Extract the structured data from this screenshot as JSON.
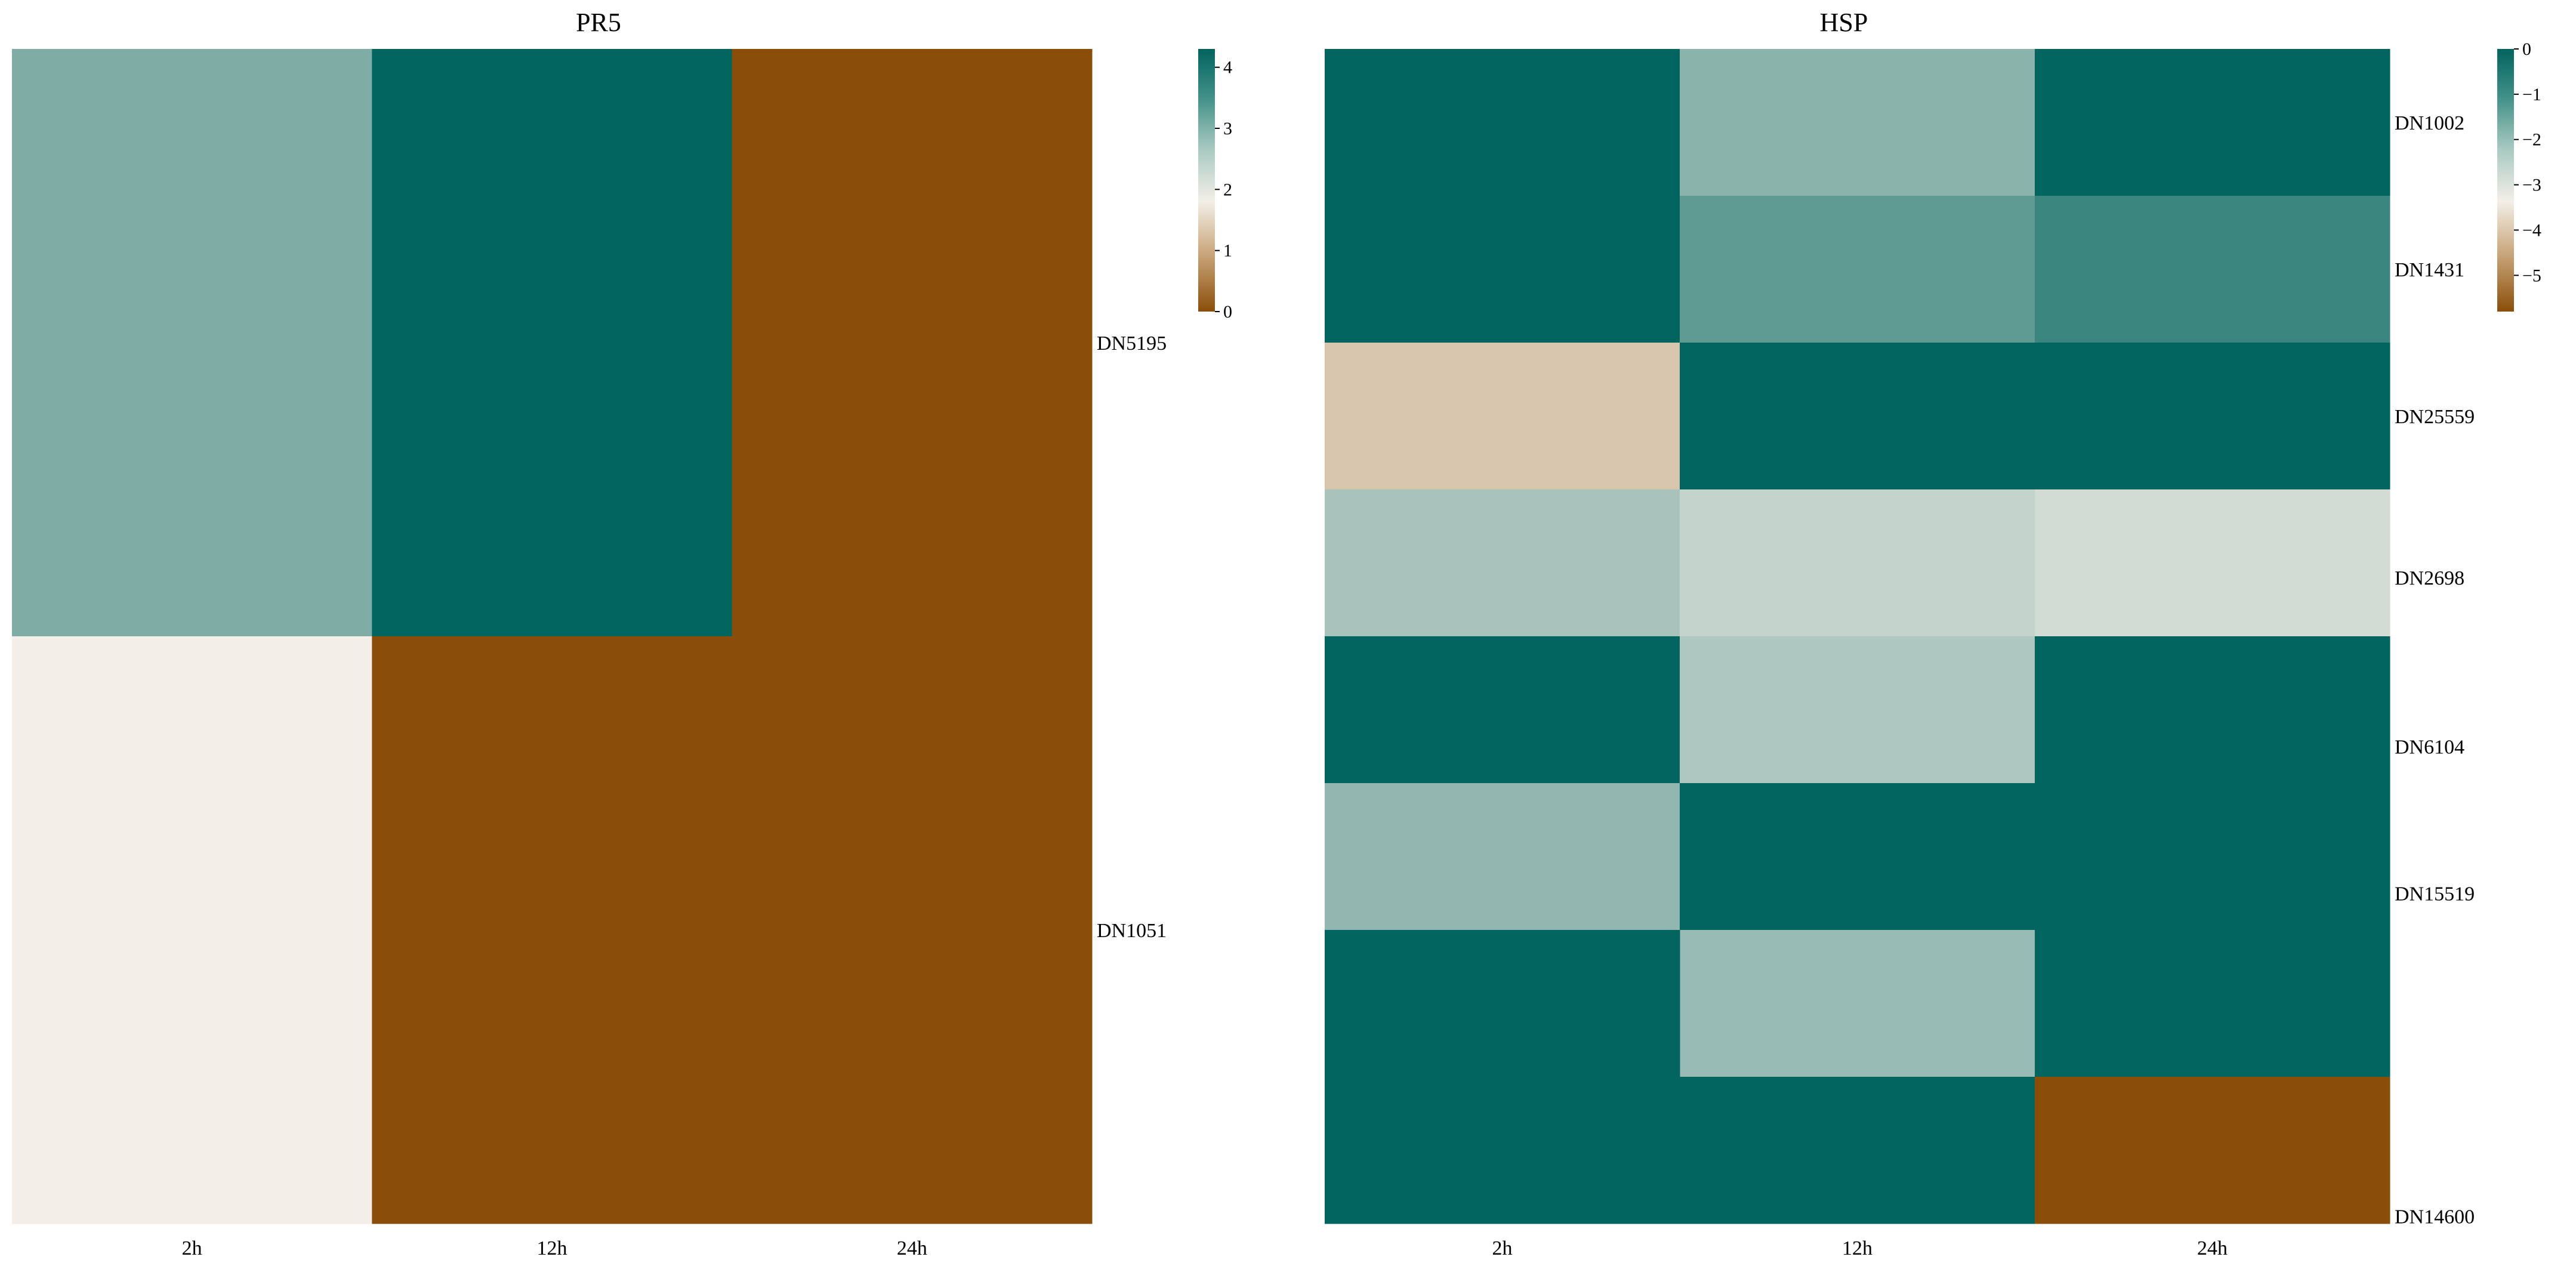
{
  "chart_data": [
    {
      "type": "heatmap",
      "title": "PR5",
      "columns": [
        "2h",
        "12h",
        "24h"
      ],
      "rows": [
        "DN5195",
        "DN1051"
      ],
      "values": [
        [
          3.0,
          4.3,
          0.0
        ],
        [
          1.8,
          0.0,
          0.0
        ]
      ],
      "colorbar": {
        "min": 0,
        "max": 4.3,
        "ticks": [
          "0",
          "1",
          "2",
          "3",
          "4"
        ],
        "tick_values": [
          0,
          1,
          2,
          3,
          4
        ]
      },
      "colors": {
        "low": "#8b4e0a",
        "mid": "#f3efe8",
        "high": "#02645e"
      }
    },
    {
      "type": "heatmap",
      "title": "HSP",
      "columns": [
        "2h",
        "12h",
        "24h"
      ],
      "rows": [
        "DN1002",
        "DN1431",
        "DN25559",
        "DN2698",
        "DN6104",
        "DN15519",
        "DN14600"
      ],
      "cells": [
        {
          "row_span": [
            0,
            2
          ],
          "col": 0,
          "value": 0.0
        },
        {
          "row_span": [
            0,
            1
          ],
          "col": 1,
          "value": -1.9
        },
        {
          "row_span": [
            0,
            1
          ],
          "col": 2,
          "value": 0.0
        },
        {
          "row_span": [
            1,
            2
          ],
          "col": 1,
          "value": -1.3
        },
        {
          "row_span": [
            1,
            2
          ],
          "col": 2,
          "value": -0.8
        },
        {
          "row_span": [
            2,
            3
          ],
          "col": 0,
          "value": -4.0
        },
        {
          "row_span": [
            2,
            3
          ],
          "col": 1,
          "value": 0.0
        },
        {
          "row_span": [
            2,
            3
          ],
          "col": 2,
          "value": 0.0
        },
        {
          "row_span": [
            3,
            4
          ],
          "col": 0,
          "value": -2.3
        },
        {
          "row_span": [
            3,
            4
          ],
          "col": 1,
          "value": -2.7
        },
        {
          "row_span": [
            3,
            4
          ],
          "col": 2,
          "value": -2.9
        },
        {
          "row_span": [
            4,
            5
          ],
          "col": 0,
          "value": 0.0
        },
        {
          "row_span": [
            4,
            5
          ],
          "col": 1,
          "value": -2.4
        },
        {
          "row_span": [
            4,
            6
          ],
          "col": 2,
          "value": 0.0
        },
        {
          "row_span": [
            5,
            6
          ],
          "col": 0,
          "value": -2.0
        },
        {
          "row_span": [
            5,
            6
          ],
          "col": 1,
          "value": 0.0
        },
        {
          "row_span": [
            6,
            7
          ],
          "col": 1,
          "value": -2.1
        },
        {
          "row_span": [
            6,
            8
          ],
          "col": 0,
          "value": 0.0
        },
        {
          "row_span": [
            6,
            7
          ],
          "col": 2,
          "value": 0.0
        },
        {
          "row_span": [
            7,
            8
          ],
          "col": 1,
          "value": 0.0
        },
        {
          "row_span": [
            7,
            8
          ],
          "col": 2,
          "value": -5.8
        }
      ],
      "grid_rows": 8,
      "row_label_slots": [
        0.5,
        1.5,
        2.5,
        3.6,
        4.75,
        5.75,
        7.95
      ],
      "colorbar": {
        "min": -5.8,
        "max": 0,
        "ticks": [
          "0",
          "−1",
          "−2",
          "−3",
          "−4",
          "−5"
        ],
        "tick_values": [
          0,
          -1,
          -2,
          -3,
          -4,
          -5
        ]
      },
      "colors": {
        "low": "#8b4e0a",
        "mid": "#f3efe8",
        "high": "#02645e"
      }
    }
  ]
}
